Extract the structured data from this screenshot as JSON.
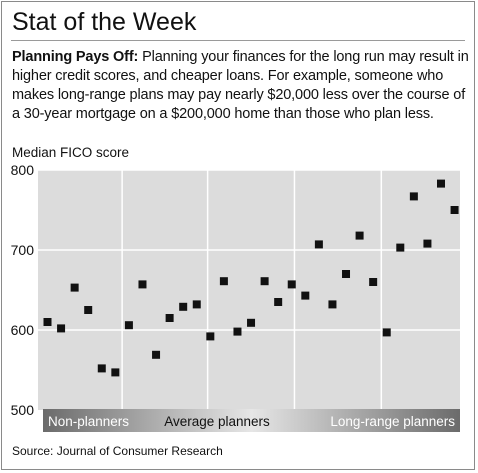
{
  "header": {
    "title": "Stat of the Week"
  },
  "intro": {
    "lead": "Planning Pays Off:",
    "text": " Planning your finances for the long run may result in higher credit scores, and cheaper loans. For example, someone who makes long-range plans may pay nearly $20,000 less over the course of a 30-year mortgage on a $200,000 home than those who plan less."
  },
  "source": "Source: Journal of Consumer Research",
  "colors": {
    "plot_bg": "#dcdcdc",
    "grid": "#ffffff",
    "marker": "#111111",
    "band_dark": "#6b6b6b",
    "band_light": "#e6e6e6"
  },
  "chart_data": {
    "type": "scatter",
    "ylabel": "Median FICO score",
    "ylim": [
      500,
      800
    ],
    "yticks": [
      500,
      600,
      700,
      800
    ],
    "grid": true,
    "x_axis": "planning horizon (gradient band)",
    "x_labels": [
      "Non-planners",
      "Average planners",
      "Long-range planners"
    ],
    "series": [
      {
        "marker": "square",
        "points": [
          {
            "x": 1,
            "y": 610
          },
          {
            "x": 2,
            "y": 602
          },
          {
            "x": 3,
            "y": 653
          },
          {
            "x": 4,
            "y": 625
          },
          {
            "x": 5,
            "y": 552
          },
          {
            "x": 6,
            "y": 547
          },
          {
            "x": 7,
            "y": 606
          },
          {
            "x": 8,
            "y": 657
          },
          {
            "x": 9,
            "y": 569
          },
          {
            "x": 10,
            "y": 615
          },
          {
            "x": 11,
            "y": 629
          },
          {
            "x": 12,
            "y": 632
          },
          {
            "x": 13,
            "y": 592
          },
          {
            "x": 14,
            "y": 661
          },
          {
            "x": 15,
            "y": 598
          },
          {
            "x": 16,
            "y": 609
          },
          {
            "x": 17,
            "y": 661
          },
          {
            "x": 18,
            "y": 635
          },
          {
            "x": 19,
            "y": 657
          },
          {
            "x": 20,
            "y": 643
          },
          {
            "x": 21,
            "y": 707
          },
          {
            "x": 22,
            "y": 632
          },
          {
            "x": 23,
            "y": 670
          },
          {
            "x": 24,
            "y": 718
          },
          {
            "x": 25,
            "y": 660
          },
          {
            "x": 26,
            "y": 597
          },
          {
            "x": 27,
            "y": 703
          },
          {
            "x": 28,
            "y": 767
          },
          {
            "x": 29,
            "y": 708
          },
          {
            "x": 30,
            "y": 783
          },
          {
            "x": 31,
            "y": 750
          }
        ]
      }
    ]
  }
}
